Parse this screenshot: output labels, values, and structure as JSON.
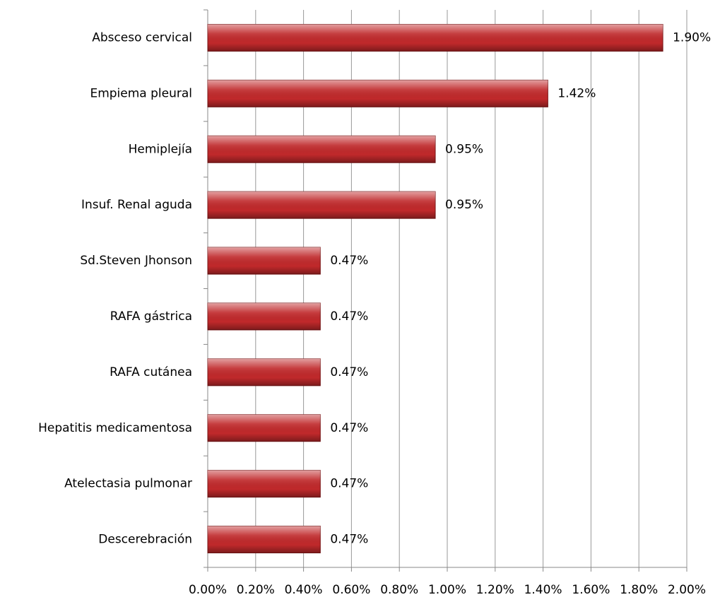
{
  "chart_data": {
    "type": "barh",
    "categories": [
      "Absceso cervical",
      "Empiema pleural",
      "Hemiplejía",
      "Insuf. Renal aguda",
      "Sd.Steven Jhonson",
      "RAFA gástrica",
      "RAFA cutánea",
      "Hepatitis medicamentosa",
      "Atelectasia pulmonar",
      "Descerebración"
    ],
    "values": [
      1.9,
      1.42,
      0.95,
      0.95,
      0.47,
      0.47,
      0.47,
      0.47,
      0.47,
      0.47
    ],
    "value_labels": [
      "1.90%",
      "1.42%",
      "0.95%",
      "0.95%",
      "0.47%",
      "0.47%",
      "0.47%",
      "0.47%",
      "0.47%",
      "0.47%"
    ],
    "color": "#c0292b",
    "xlim": [
      0,
      2
    ],
    "xticks": [
      {
        "value": 0,
        "label": "0.00%"
      },
      {
        "value": 0.2,
        "label": "0.20%"
      },
      {
        "value": 0.4,
        "label": "0.40%"
      },
      {
        "value": 0.6,
        "label": "0.60%"
      },
      {
        "value": 0.8,
        "label": "0.80%"
      },
      {
        "value": 1.0,
        "label": "1.00%"
      },
      {
        "value": 1.2,
        "label": "1.20%"
      },
      {
        "value": 1.4,
        "label": "1.40%"
      },
      {
        "value": 1.6,
        "label": "1.60%"
      },
      {
        "value": 1.8,
        "label": "1.80%"
      },
      {
        "value": 2.0,
        "label": "2.00%"
      }
    ],
    "grid": true
  }
}
